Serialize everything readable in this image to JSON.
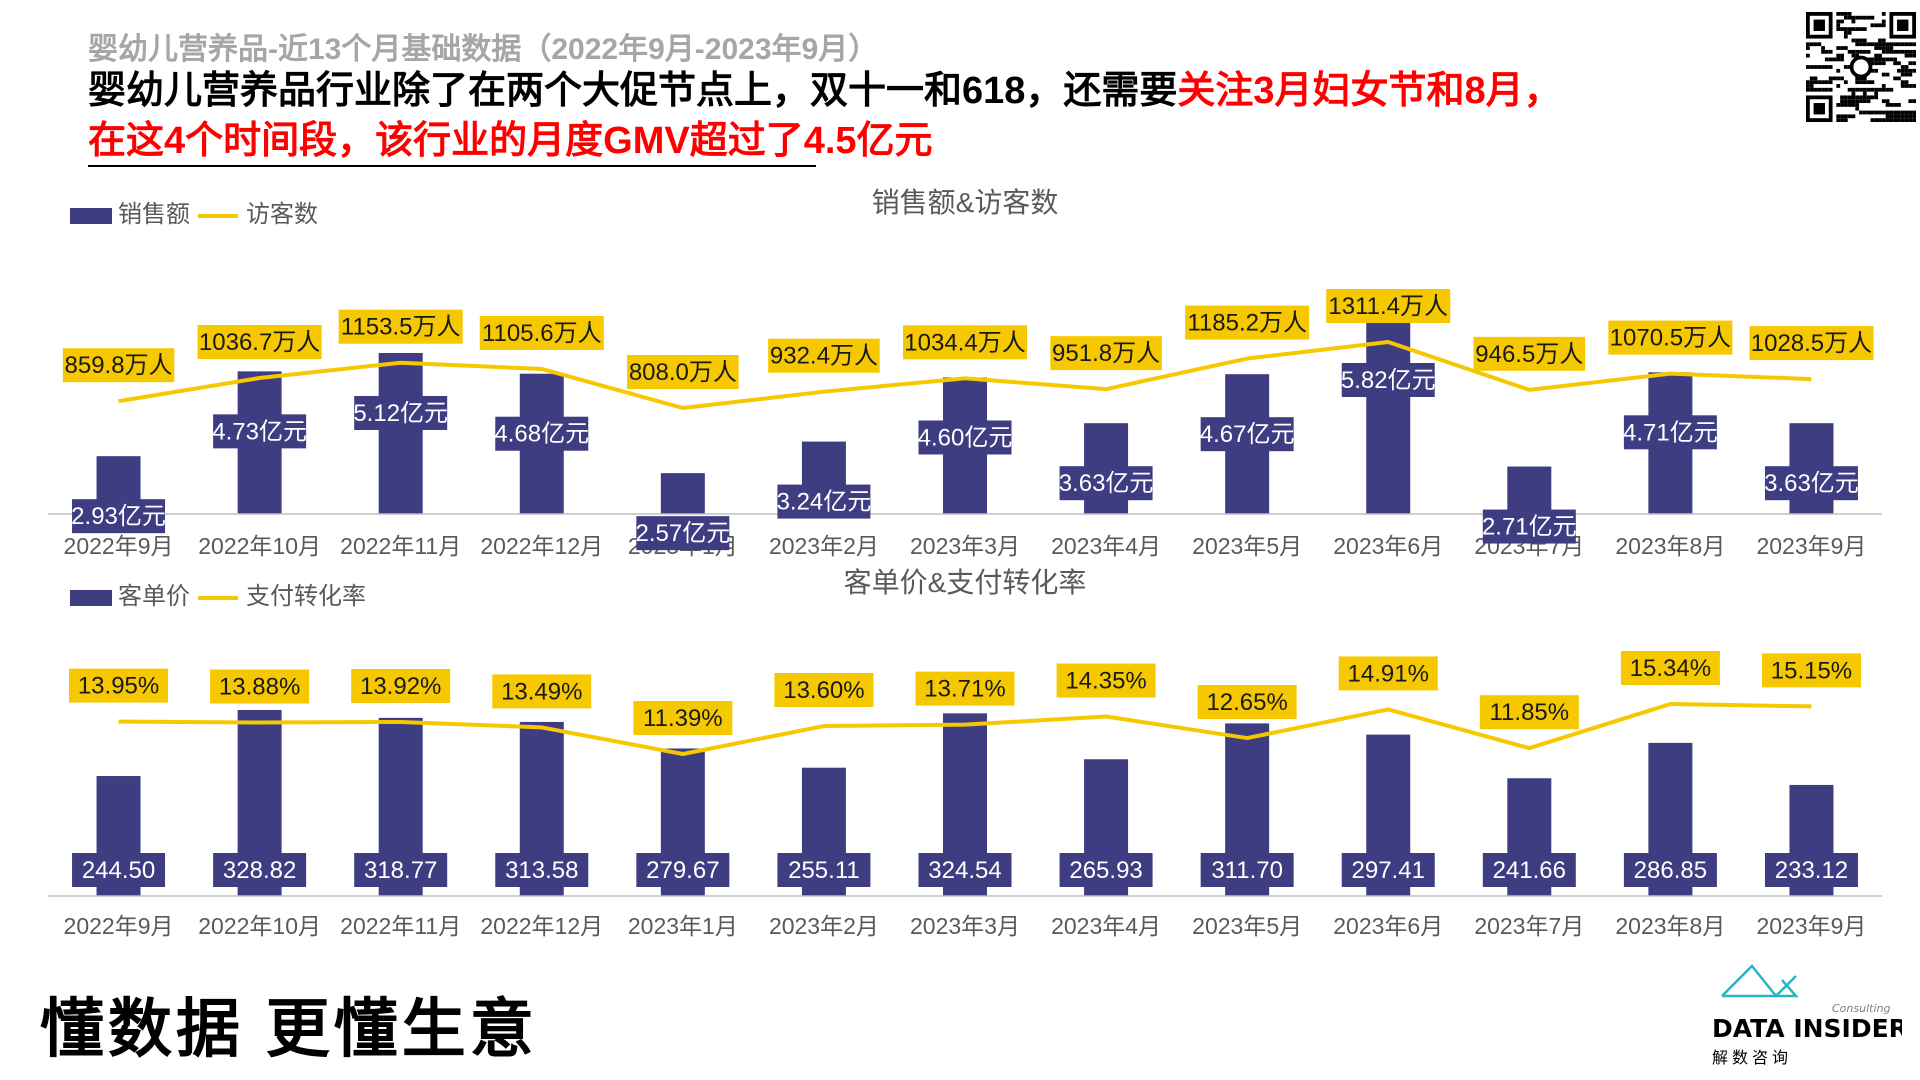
{
  "header": {
    "subtitle": "婴幼儿营养品-近13个月基础数据（2022年9月-2023年9月）",
    "headline_line1_black": "婴幼儿营养品行业除了在两个大促节点上，双十一和618，还需要",
    "headline_line1_red": "关注3月妇女节和8月，",
    "headline_line2_red": "在这4个时间段，该行业的月度GMV超过了4.5亿元"
  },
  "footer": {
    "slogan": "懂数据 更懂生意",
    "brand": "DATA INSIDER",
    "brand_sub": "解数咨询",
    "brand_tag": "Consulting"
  },
  "colors": {
    "bar": "#3f3d82",
    "line": "#f5c800",
    "label_bg": "#f5c800",
    "bar_label_bg": "#3f3d82",
    "axis": "#bfbfbf",
    "tick_text": "#595959",
    "headline_red": "#ff0000"
  },
  "chart_data": [
    {
      "type": "bar+line",
      "title": "销售额&访客数",
      "legend": [
        "销售额",
        "访客数"
      ],
      "legend_position": "top-left",
      "categories": [
        "2022年9月",
        "2022年10月",
        "2022年11月",
        "2022年12月",
        "2023年1月",
        "2023年2月",
        "2023年3月",
        "2023年4月",
        "2023年5月",
        "2023年6月",
        "2023年7月",
        "2023年8月",
        "2023年9月"
      ],
      "series": [
        {
          "name": "销售额",
          "kind": "bar",
          "values": [
            2.93,
            4.73,
            5.12,
            4.68,
            2.57,
            3.24,
            4.6,
            3.63,
            4.67,
            5.82,
            2.71,
            4.71,
            3.63
          ],
          "labels": [
            "2.93亿元",
            "4.73亿元",
            "5.12亿元",
            "4.68亿元",
            "2.57亿元",
            "3.24亿元",
            "4.60亿元",
            "3.63亿元",
            "4.67亿元",
            "5.82亿元",
            "2.71亿元",
            "4.71亿元",
            "3.63亿元"
          ]
        },
        {
          "name": "访客数",
          "kind": "line",
          "values": [
            859.8,
            1036.7,
            1153.5,
            1105.6,
            808.0,
            932.4,
            1034.4,
            951.8,
            1185.2,
            1311.4,
            946.5,
            1070.5,
            1028.5
          ],
          "labels": [
            "859.8万人",
            "1036.7万人",
            "1153.5万人",
            "1105.6万人",
            "808.0万人",
            "932.4万人",
            "1034.4万人",
            "951.8万人",
            "1185.2万人",
            "1311.4万人",
            "946.5万人",
            "1070.5万人",
            "1028.5万人"
          ]
        }
      ],
      "grid": false
    },
    {
      "type": "bar+line",
      "title": "客单价&支付转化率",
      "legend": [
        "客单价",
        "支付转化率"
      ],
      "legend_position": "top-left",
      "categories": [
        "2022年9月",
        "2022年10月",
        "2022年11月",
        "2022年12月",
        "2023年1月",
        "2023年2月",
        "2023年3月",
        "2023年4月",
        "2023年5月",
        "2023年6月",
        "2023年7月",
        "2023年8月",
        "2023年9月"
      ],
      "series": [
        {
          "name": "客单价",
          "kind": "bar",
          "values": [
            244.5,
            328.82,
            318.77,
            313.58,
            279.67,
            255.11,
            324.54,
            265.93,
            311.7,
            297.41,
            241.66,
            286.85,
            233.12
          ],
          "labels": [
            "244.50",
            "328.82",
            "318.77",
            "313.58",
            "279.67",
            "255.11",
            "324.54",
            "265.93",
            "311.70",
            "297.41",
            "241.66",
            "286.85",
            "233.12"
          ]
        },
        {
          "name": "支付转化率",
          "kind": "line",
          "values": [
            13.95,
            13.88,
            13.92,
            13.49,
            11.39,
            13.6,
            13.71,
            14.35,
            12.65,
            14.91,
            11.85,
            15.34,
            15.15
          ],
          "labels": [
            "13.95%",
            "13.88%",
            "13.92%",
            "13.49%",
            "11.39%",
            "13.60%",
            "13.71%",
            "14.35%",
            "12.65%",
            "14.91%",
            "11.85%",
            "15.34%",
            "15.15%"
          ]
        }
      ],
      "grid": false
    }
  ]
}
